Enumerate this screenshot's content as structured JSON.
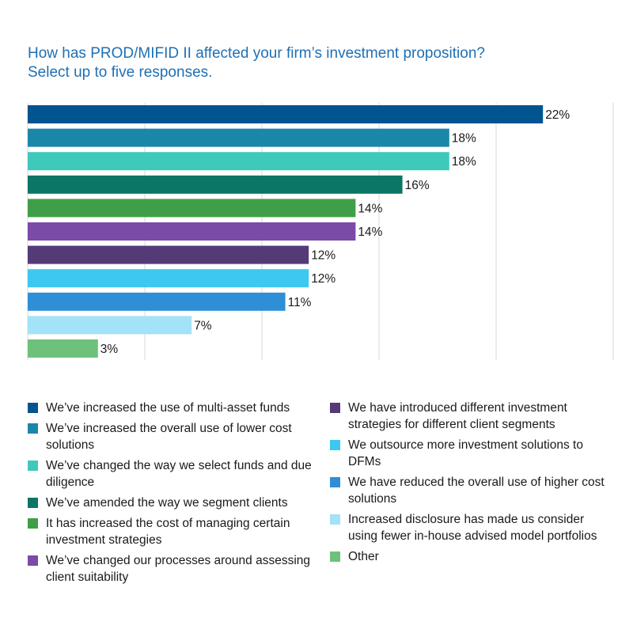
{
  "title": {
    "line1": "How has PROD/MIFID II affected your firm’s investment proposition?",
    "line2": "Select up to five responses."
  },
  "chart_data": {
    "type": "bar",
    "orientation": "horizontal",
    "xlim": [
      0,
      25
    ],
    "grid": true,
    "legend_placement": "bottom",
    "categories": [
      "We’ve increased the use of multi-asset funds",
      "We’ve increased the overall use of lower cost solutions",
      "We’ve changed the way we select funds and due diligence",
      "We’ve amended the way we segment clients",
      "It has increased the cost of managing certain investment strategies",
      "We’ve changed our processes around assessing client suitability",
      "We have introduced different investment strategies for different client segments",
      "We outsource more investment solutions to DFMs",
      "We have reduced the overall use of higher cost solutions",
      "Increased disclosure has made us consider using fewer in-house advised model portfolios",
      "Other"
    ],
    "values": [
      22,
      18,
      18,
      16,
      14,
      14,
      12,
      12,
      11,
      7,
      3
    ],
    "data_labels": [
      "22%",
      "18%",
      "18%",
      "16%",
      "14%",
      "14%",
      "12%",
      "12%",
      "11%",
      "7%",
      "3%"
    ],
    "colors": [
      "#00548f",
      "#1b87a8",
      "#3ec9bb",
      "#0b7566",
      "#3f9f48",
      "#7b4ba8",
      "#553a78",
      "#3cc8f0",
      "#2f8fd6",
      "#a3e2f8",
      "#6ec17b"
    ]
  },
  "legend": {
    "col1": [
      {
        "label": "We’ve increased the use of multi-asset funds",
        "color": "#00548f"
      },
      {
        "label": "We’ve increased the overall use of lower cost solutions",
        "color": "#1b87a8"
      },
      {
        "label": "We’ve changed the way we select funds and due diligence",
        "color": "#3ec9bb"
      },
      {
        "label": "We’ve amended the way we segment clients",
        "color": "#0b7566"
      },
      {
        "label": "It has increased the cost of managing certain investment strategies",
        "color": "#3f9f48"
      },
      {
        "label": "We’ve changed our processes around assessing client suitability",
        "color": "#7b4ba8"
      }
    ],
    "col2": [
      {
        "label": "We have introduced different investment strategies for different client segments",
        "color": "#553a78"
      },
      {
        "label": "We outsource more investment solutions to DFMs",
        "color": "#3cc8f0"
      },
      {
        "label": "We have reduced the overall use of higher cost solutions",
        "color": "#2f8fd6"
      },
      {
        "label": "Increased disclosure has made us consider using fewer in-house advised model portfolios",
        "color": "#a3e2f8"
      },
      {
        "label": "Other",
        "color": "#6ec17b"
      }
    ]
  }
}
